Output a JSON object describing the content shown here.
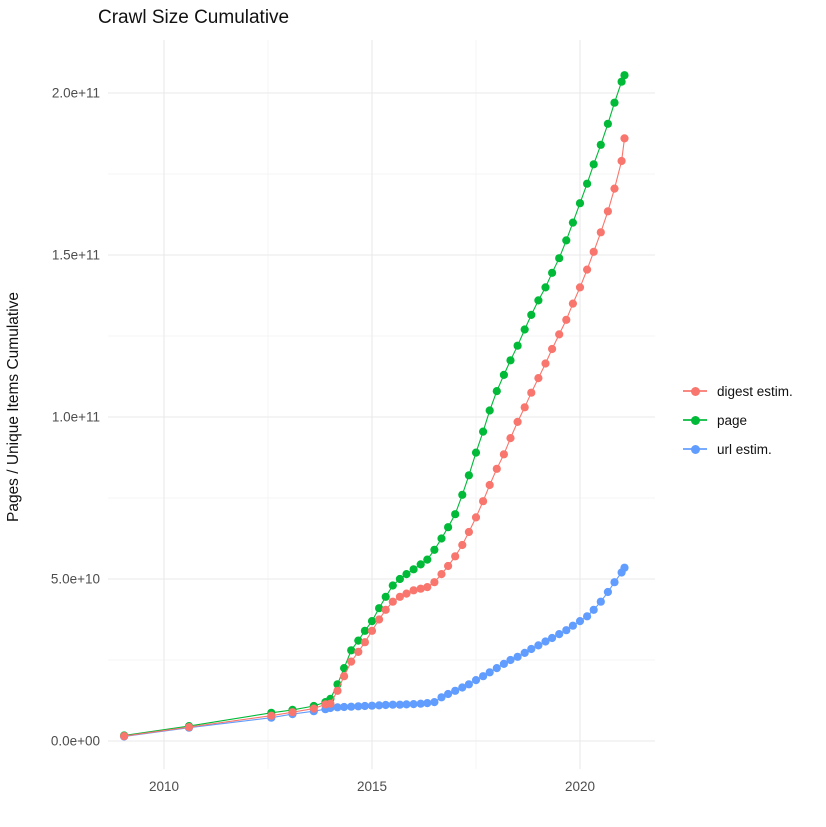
{
  "title": "Crawl Size Cumulative",
  "legend": {
    "position": "right",
    "items": [
      {
        "label": "digest estim.",
        "color": "#F8766D"
      },
      {
        "label": "page",
        "color": "#00BA38"
      },
      {
        "label": "url estim.",
        "color": "#619CFF"
      }
    ]
  },
  "chart_data": {
    "type": "scatter",
    "title": "Crawl Size Cumulative",
    "xlabel": "",
    "ylabel": "Pages / Unique Items Cumulative",
    "grid": true,
    "legend_position": "right",
    "xlim": [
      2008.65,
      2021.85
    ],
    "ylim": [
      0,
      216000000000.0
    ],
    "x_ticks": [
      {
        "value": 2010,
        "label": "2010"
      },
      {
        "value": 2015,
        "label": "2015"
      },
      {
        "value": 2020,
        "label": "2020"
      }
    ],
    "x_minor": [
      2012.5,
      2017.5
    ],
    "y_ticks": [
      {
        "value": 0,
        "label": "0.0e+00"
      },
      {
        "value": 50000000000.0,
        "label": "5.0e+10"
      },
      {
        "value": 100000000000.0,
        "label": "1.0e+11"
      },
      {
        "value": 150000000000.0,
        "label": "1.5e+11"
      },
      {
        "value": 200000000000.0,
        "label": "2.0e+11"
      }
    ],
    "y_minor": [
      25000000000.0,
      75000000000.0,
      125000000000.0,
      175000000000.0
    ],
    "x": [
      2009.04,
      2010.6,
      2012.58,
      2013.09,
      2013.6,
      2013.88,
      2014.0,
      2014.17,
      2014.33,
      2014.5,
      2014.67,
      2014.83,
      2015.0,
      2015.17,
      2015.33,
      2015.5,
      2015.67,
      2015.83,
      2016.0,
      2016.17,
      2016.33,
      2016.5,
      2016.67,
      2016.83,
      2017.0,
      2017.17,
      2017.33,
      2017.5,
      2017.67,
      2017.83,
      2018.0,
      2018.17,
      2018.33,
      2018.5,
      2018.67,
      2018.83,
      2019.0,
      2019.17,
      2019.33,
      2019.5,
      2019.67,
      2019.83,
      2020.0,
      2020.17,
      2020.33,
      2020.5,
      2020.67,
      2020.83,
      2021.0,
      2021.07
    ],
    "series": [
      {
        "name": "digest estim.",
        "color": "#F8766D",
        "values": [
          1500000000.0,
          4300000000.0,
          7800000000.0,
          8900000000.0,
          10000000000.0,
          11300000000.0,
          11500000000.0,
          15500000000.0,
          20000000000.0,
          24500000000.0,
          27500000000.0,
          30500000000.0,
          34000000000.0,
          37500000000.0,
          40500000000.0,
          43000000000.0,
          44500000000.0,
          45500000000.0,
          46500000000.0,
          47000000000.0,
          47500000000.0,
          49000000000.0,
          51500000000.0,
          54000000000.0,
          57000000000.0,
          60500000000.0,
          64500000000.0,
          69000000000.0,
          74000000000.0,
          79000000000.0,
          84000000000.0,
          88500000000.0,
          93500000000.0,
          98500000000.0,
          103000000000.0,
          107500000000.0,
          112000000000.0,
          116500000000.0,
          121000000000.0,
          125500000000.0,
          130000000000.0,
          135000000000.0,
          140000000000.0,
          145500000000.0,
          151000000000.0,
          157000000000.0,
          163500000000.0,
          170500000000.0,
          179000000000.0,
          186000000000.0
        ]
      },
      {
        "name": "page",
        "color": "#00BA38",
        "values": [
          1700000000.0,
          4600000000.0,
          8700000000.0,
          9600000000.0,
          10800000000.0,
          12000000000.0,
          13000000000.0,
          17500000000.0,
          22500000000.0,
          28000000000.0,
          31000000000.0,
          34000000000.0,
          37000000000.0,
          41000000000.0,
          44500000000.0,
          48000000000.0,
          50000000000.0,
          51500000000.0,
          53000000000.0,
          54500000000.0,
          56000000000.0,
          59000000000.0,
          62500000000.0,
          66000000000.0,
          70000000000.0,
          76000000000.0,
          82000000000.0,
          89000000000.0,
          95500000000.0,
          102000000000.0,
          108000000000.0,
          113000000000.0,
          117500000000.0,
          122000000000.0,
          127000000000.0,
          131500000000.0,
          136000000000.0,
          140000000000.0,
          144500000000.0,
          149000000000.0,
          154500000000.0,
          160000000000.0,
          166000000000.0,
          172000000000.0,
          178000000000.0,
          184000000000.0,
          190500000000.0,
          197000000000.0,
          203500000000.0,
          205500000000.0
        ]
      },
      {
        "name": "url estim.",
        "color": "#619CFF",
        "values": [
          1400000000.0,
          4100000000.0,
          7200000000.0,
          8300000000.0,
          9200000000.0,
          9800000000.0,
          10200000000.0,
          10400000000.0,
          10500000000.0,
          10600000000.0,
          10700000000.0,
          10800000000.0,
          10900000000.0,
          11000000000.0,
          11100000000.0,
          11200000000.0,
          11200000000.0,
          11300000000.0,
          11400000000.0,
          11500000000.0,
          11700000000.0,
          12000000000.0,
          13500000000.0,
          14500000000.0,
          15500000000.0,
          16500000000.0,
          17500000000.0,
          18800000000.0,
          20000000000.0,
          21200000000.0,
          22500000000.0,
          23800000000.0,
          25000000000.0,
          26000000000.0,
          27200000000.0,
          28400000000.0,
          29500000000.0,
          30700000000.0,
          31800000000.0,
          33000000000.0,
          34200000000.0,
          35600000000.0,
          37000000000.0,
          38500000000.0,
          40500000000.0,
          43000000000.0,
          46000000000.0,
          49000000000.0,
          52000000000.0,
          53500000000.0
        ]
      }
    ]
  }
}
